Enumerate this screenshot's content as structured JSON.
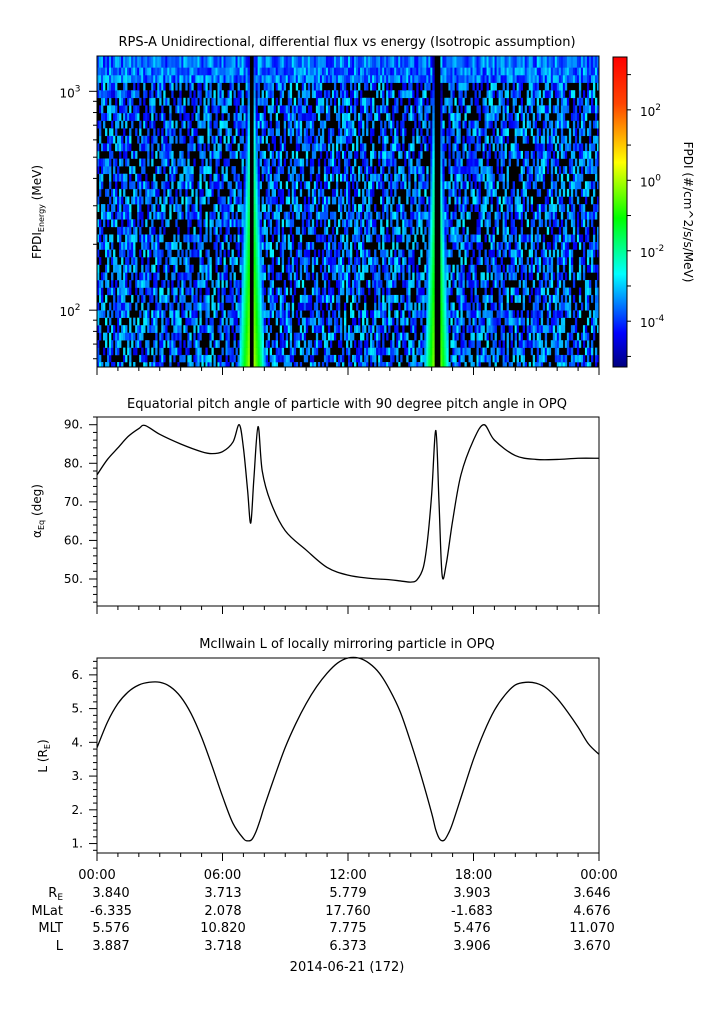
{
  "chart_data": [
    {
      "type": "heatmap",
      "title": "RPS-A Unidirectional, differential flux vs energy (Isotropic assumption)",
      "ylabel": "FPDI",
      "ylabel_sub": "Energy",
      "ylabel_unit": "(MeV)",
      "y_scale": "log",
      "ylim": [
        55,
        1450
      ],
      "y_major_ticks": [
        {
          "value": 100,
          "base": "10",
          "exp": "2"
        },
        {
          "value": 1000,
          "base": "10",
          "exp": "3"
        }
      ],
      "energy_bands": [
        56,
        60,
        65,
        70,
        76,
        82,
        89,
        96,
        104,
        113,
        122,
        132,
        143,
        155,
        168,
        182,
        197,
        213,
        231,
        250,
        271,
        293,
        318,
        344,
        373,
        404,
        437,
        474,
        513,
        556,
        602,
        652,
        706,
        765,
        829,
        898,
        972,
        1053,
        1141,
        1236,
        1340
      ],
      "xlim_hours": [
        0,
        24
      ],
      "bursts": [
        {
          "center_hour": 7.4,
          "width_low_energy_hours": 1.3,
          "width_high_energy_hours": 0.35,
          "peak_log10_flux": 0.5
        },
        {
          "center_hour": 16.25,
          "width_low_energy_hours": 1.2,
          "width_high_energy_hours": 0.35,
          "peak_log10_flux": 0.5
        }
      ],
      "colorbar": {
        "label": "FPDI (#/cm^2/s/s/MeV)",
        "log10_range": [
          -5.3,
          3.5
        ],
        "ticks": [
          {
            "log10": 2,
            "base": "10",
            "exp": "2"
          },
          {
            "log10": 0,
            "base": "10",
            "exp": "0"
          },
          {
            "log10": -2,
            "base": "10",
            "exp": "-2"
          },
          {
            "log10": -4,
            "base": "10",
            "exp": "-4"
          }
        ]
      }
    },
    {
      "type": "line",
      "title": "Equatorial pitch angle of particle with 90 degree pitch angle in OPQ",
      "ylabel": "α",
      "ylabel_sub": "Eq",
      "ylabel_unit": "(deg)",
      "ylim": [
        43,
        92
      ],
      "yticks": [
        50,
        60,
        70,
        80,
        90
      ],
      "ytick_labels": [
        "50.",
        "60.",
        "70.",
        "80.",
        "90."
      ],
      "x_hours": [
        0,
        0.5,
        1,
        1.5,
        2,
        2.3,
        3,
        4,
        5,
        5.5,
        6,
        6.5,
        6.8,
        7.0,
        7.2,
        7.35,
        7.5,
        7.7,
        7.9,
        8.3,
        9,
        10,
        11,
        12,
        13,
        14,
        14.5,
        15,
        15.3,
        15.6,
        15.8,
        16.0,
        16.2,
        16.35,
        16.5,
        16.7,
        17.0,
        17.4,
        18,
        18.5,
        19,
        20,
        21,
        22,
        23,
        24
      ],
      "y_values": [
        77,
        81,
        84,
        87,
        89,
        89.8,
        87.5,
        85,
        83,
        82.5,
        83,
        85.5,
        90,
        84,
        73,
        64.5,
        76,
        89.5,
        78,
        70,
        62.5,
        57.5,
        53,
        51,
        50.2,
        49.8,
        49.5,
        49.2,
        49.8,
        53,
        60,
        72,
        88.5,
        70,
        51,
        54,
        65,
        77,
        86,
        90,
        86,
        82,
        81,
        81,
        81.3,
        81.3
      ]
    },
    {
      "type": "line",
      "title": "McIlwain L of locally mirroring particle in OPQ",
      "ylabel": "L (R",
      "ylabel_sub": "E",
      "ylabel_unit": ")",
      "ylim": [
        0.72,
        6.5
      ],
      "yticks": [
        1,
        2,
        3,
        4,
        5,
        6
      ],
      "ytick_labels": [
        "1.",
        "2.",
        "3.",
        "4.",
        "5.",
        "6."
      ],
      "x_hours": [
        0,
        0.5,
        1,
        1.5,
        2,
        2.5,
        3,
        3.5,
        4,
        4.5,
        5,
        5.5,
        6,
        6.5,
        7,
        7.2,
        7.4,
        7.6,
        7.8,
        8,
        8.5,
        9,
        9.5,
        10,
        10.5,
        11,
        11.5,
        12,
        12.5,
        13,
        13.5,
        14,
        14.5,
        15,
        15.5,
        16,
        16.2,
        16.4,
        16.6,
        16.8,
        17,
        17.5,
        18,
        18.5,
        19,
        19.5,
        20,
        20.5,
        21,
        21.5,
        22,
        22.5,
        23,
        23.5,
        24
      ],
      "y_values": [
        3.84,
        4.6,
        5.15,
        5.5,
        5.7,
        5.78,
        5.78,
        5.65,
        5.35,
        4.85,
        4.15,
        3.3,
        2.4,
        1.6,
        1.15,
        1.08,
        1.12,
        1.35,
        1.7,
        2.1,
        3.0,
        3.85,
        4.55,
        5.15,
        5.65,
        6.05,
        6.35,
        6.5,
        6.5,
        6.35,
        6.05,
        5.55,
        4.9,
        4.0,
        3.0,
        1.9,
        1.4,
        1.12,
        1.1,
        1.3,
        1.6,
        2.55,
        3.5,
        4.3,
        4.95,
        5.4,
        5.7,
        5.78,
        5.75,
        5.6,
        5.3,
        4.9,
        4.45,
        3.95,
        3.646
      ]
    }
  ],
  "x_axis": {
    "tick_labels": [
      "00:00",
      "06:00",
      "12:00",
      "18:00",
      "00:00"
    ],
    "date_label": "2014-06-21 (172)"
  },
  "ephemeris": {
    "rows": [
      {
        "label": "R",
        "label_sub": "E",
        "values": [
          "3.840",
          "3.713",
          "5.779",
          "3.903",
          "3.646"
        ]
      },
      {
        "label": "MLat",
        "label_sub": "",
        "values": [
          "-6.335",
          "2.078",
          "17.760",
          "-1.683",
          "4.676"
        ]
      },
      {
        "label": "MLT",
        "label_sub": "",
        "values": [
          "5.576",
          "10.820",
          "7.775",
          "5.476",
          "11.070"
        ]
      },
      {
        "label": "L",
        "label_sub": "",
        "values": [
          "3.887",
          "3.718",
          "6.373",
          "3.906",
          "3.670"
        ]
      }
    ]
  }
}
